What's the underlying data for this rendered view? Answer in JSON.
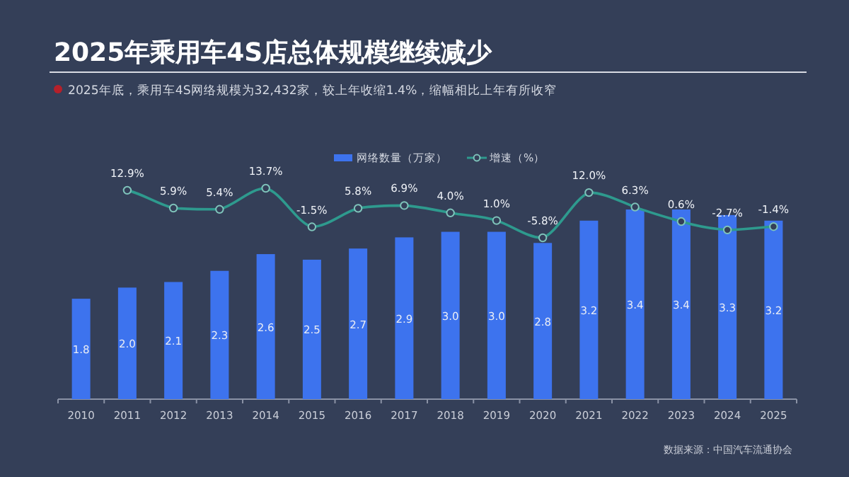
{
  "chart_data": {
    "type": "bar",
    "title": "2025年乘用车4S店总体规模继续减少",
    "subtitle": "2025年底，乘用车4S网络规模为32,432家，较上年收缩1.4%，缩幅相比上年有所收窄",
    "categories": [
      "2010",
      "2011",
      "2012",
      "2013",
      "2014",
      "2015",
      "2016",
      "2017",
      "2018",
      "2019",
      "2020",
      "2021",
      "2022",
      "2023",
      "2024",
      "2025"
    ],
    "series": [
      {
        "name": "网络数量（万家）",
        "color": "#3d73ee",
        "values": [
          1.8,
          2.0,
          2.1,
          2.3,
          2.6,
          2.5,
          2.7,
          2.9,
          3.0,
          3.0,
          2.8,
          3.2,
          3.4,
          3.4,
          3.3,
          3.2
        ],
        "value_labels": [
          "1.8",
          "2.0",
          "2.1",
          "2.3",
          "2.6",
          "2.5",
          "2.7",
          "2.9",
          "3.0",
          "3.0",
          "2.8",
          "3.2",
          "3.4",
          "3.4",
          "3.3",
          "3.2"
        ]
      },
      {
        "name": "增速（%）",
        "type": "line",
        "axis": "y2",
        "color": "#2e9a8e",
        "marker": "circle",
        "values": [
          null,
          12.9,
          5.9,
          5.4,
          13.7,
          -1.5,
          5.8,
          6.9,
          4.0,
          1.0,
          -5.8,
          12.0,
          6.3,
          0.6,
          -2.7,
          -1.4
        ],
        "value_labels": [
          null,
          "12.9%",
          "5.9%",
          "5.4%",
          "13.7%",
          "-1.5%",
          "5.8%",
          "6.9%",
          "4.0%",
          "1.0%",
          "-5.8%",
          "12.0%",
          "6.3%",
          "0.6%",
          "-2.7%",
          "-1.4%"
        ]
      }
    ],
    "legend": "top",
    "tick_labels": "x",
    "annotations": [
      "数据来源：中国汽车流通协会"
    ]
  }
}
